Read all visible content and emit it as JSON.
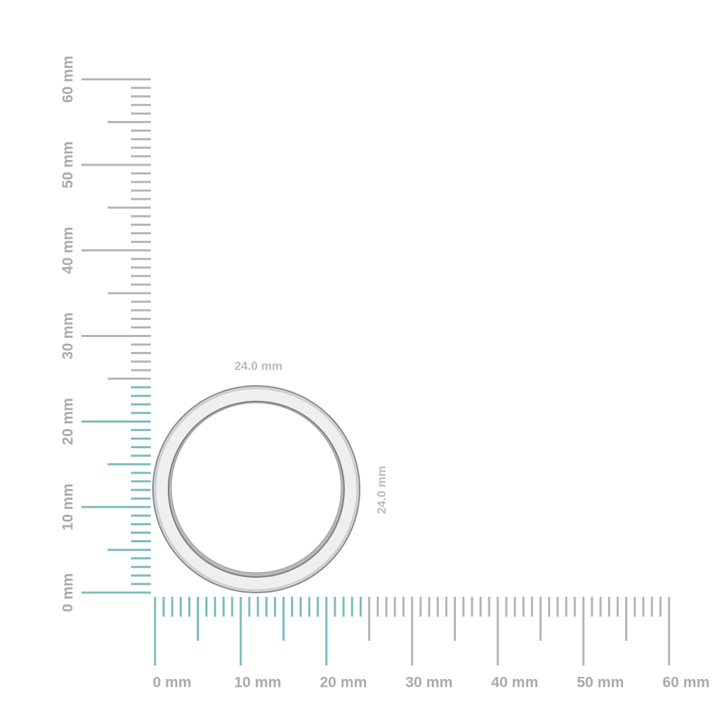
{
  "x_ruler": {
    "labels": [
      "0 mm",
      "10 mm",
      "20 mm",
      "30 mm",
      "40 mm",
      "50 mm",
      "60 mm"
    ]
  },
  "y_ruler": {
    "labels": [
      "0 mm",
      "10 mm",
      "20 mm",
      "30 mm",
      "40 mm",
      "50 mm",
      "60 mm"
    ]
  },
  "dimensions": {
    "width": "24.0 mm",
    "height": "24.0 mm"
  }
}
